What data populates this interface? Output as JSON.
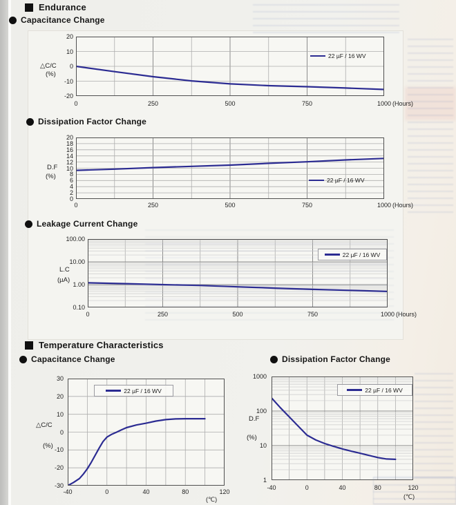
{
  "colors": {
    "curve": "#2b2b92",
    "grid": "#adadad",
    "grid_major": "#8c8c8c",
    "grid_minor": "#cbcbcb",
    "border": "#4f4f4f"
  },
  "sections": {
    "endurance": {
      "title": "Endurance"
    },
    "temperature": {
      "title": "Temperature Characteristics"
    }
  },
  "chart_data": [
    {
      "type": "line",
      "title": "Capacitance Change",
      "legend": "22 µF / 16 WV",
      "ylabel_lines": [
        "△C/C",
        "(%)"
      ],
      "yticks": [
        "20",
        "10",
        "0",
        "-10",
        "-20"
      ],
      "xticks": [
        "0",
        "250",
        "500",
        "750",
        "1000"
      ],
      "xunit": "(Hours)",
      "xlim": [
        0,
        1000
      ],
      "ylim": [
        -20,
        20
      ],
      "ylog": false,
      "xgrid": 125,
      "xgrid_major": 250,
      "ygrid": 10,
      "x": [
        0,
        125,
        250,
        375,
        500,
        625,
        750,
        875,
        1000
      ],
      "y": [
        0,
        -3.6,
        -7,
        -9.8,
        -11.8,
        -13,
        -13.7,
        -14.6,
        -15.6
      ]
    },
    {
      "type": "line",
      "title": "Dissipation Factor Change",
      "legend": "22 µF / 16 WV",
      "ylabel_lines": [
        "D.F",
        "(%)"
      ],
      "yticks": [
        "20",
        "18",
        "16",
        "14",
        "12",
        "10",
        "8",
        "6",
        "4",
        "2",
        "0"
      ],
      "xticks": [
        "0",
        "250",
        "500",
        "750",
        "1000"
      ],
      "xunit": "(Hours)",
      "xlim": [
        0,
        1000
      ],
      "ylim": [
        0,
        20
      ],
      "ylog": false,
      "xgrid": 125,
      "xgrid_major": 250,
      "ygrid": 2,
      "x": [
        0,
        125,
        250,
        375,
        500,
        625,
        750,
        875,
        1000
      ],
      "y": [
        9.3,
        9.7,
        10.2,
        10.6,
        11.0,
        11.6,
        12.1,
        12.7,
        13.2
      ]
    },
    {
      "type": "line",
      "title": "Leakage Current Change",
      "legend": "22 µF / 16 WV",
      "ylabel_lines": [
        "L.C",
        "(µA)"
      ],
      "yticks": [
        "100.00",
        "10.00",
        "1.00",
        "0.10"
      ],
      "xticks": [
        "0",
        "250",
        "500",
        "750",
        "1000"
      ],
      "xunit": "(Hours)",
      "xlim": [
        0,
        1000
      ],
      "ylim": [
        0.1,
        100
      ],
      "ylog": true,
      "xgrid": 125,
      "xgrid_major": 250,
      "ygrid": null,
      "x": [
        0,
        125,
        250,
        375,
        500,
        625,
        750,
        875,
        1000
      ],
      "y": [
        1.2,
        1.1,
        1.0,
        0.92,
        0.8,
        0.7,
        0.62,
        0.56,
        0.5
      ]
    },
    {
      "type": "line",
      "title": "Capacitance Change",
      "legend": "22 µF / 16 WV",
      "ylabel_lines": [
        "△C/C",
        "(%)"
      ],
      "yticks": [
        "30",
        "20",
        "10",
        "0",
        "-10",
        "-20",
        "-30"
      ],
      "xticks": [
        "-40",
        "0",
        "40",
        "80",
        "120"
      ],
      "xunit": "(℃)",
      "xlim": [
        -40,
        120
      ],
      "ylim": [
        -30,
        30
      ],
      "ylog": false,
      "xgrid": 20,
      "xgrid_major": null,
      "ygrid": 10,
      "x": [
        -40,
        -34,
        -28,
        -24,
        -20,
        -16,
        -12,
        -8,
        -4,
        0,
        5,
        10,
        15,
        20,
        30,
        40,
        50,
        60,
        70,
        80,
        90,
        100
      ],
      "y": [
        -30,
        -28.2,
        -26,
        -23.5,
        -20.5,
        -17,
        -13,
        -9,
        -5.3,
        -2.8,
        -1.2,
        0,
        1.3,
        2.5,
        4,
        5,
        6.2,
        7,
        7.4,
        7.5,
        7.5,
        7.5
      ]
    },
    {
      "type": "line",
      "title": "Dissipation Factor Change",
      "legend": "22 µF / 16 WV",
      "ylabel_lines": [
        "D.F",
        "(%)"
      ],
      "yticks": [
        "1000",
        "100",
        "10",
        "1"
      ],
      "xticks": [
        "-40",
        "0",
        "40",
        "80",
        "120"
      ],
      "xunit": "(℃)",
      "xlim": [
        -40,
        120
      ],
      "ylim": [
        1,
        1000
      ],
      "ylog": true,
      "xgrid": 20,
      "xgrid_major": null,
      "ygrid": null,
      "x": [
        -40,
        -30,
        -20,
        -10,
        0,
        10,
        20,
        30,
        40,
        50,
        60,
        70,
        80,
        90,
        100
      ],
      "y": [
        240,
        125,
        68,
        37,
        20,
        14.5,
        11.5,
        9.5,
        8,
        6.9,
        6,
        5.2,
        4.5,
        4.1,
        4.0
      ]
    }
  ]
}
